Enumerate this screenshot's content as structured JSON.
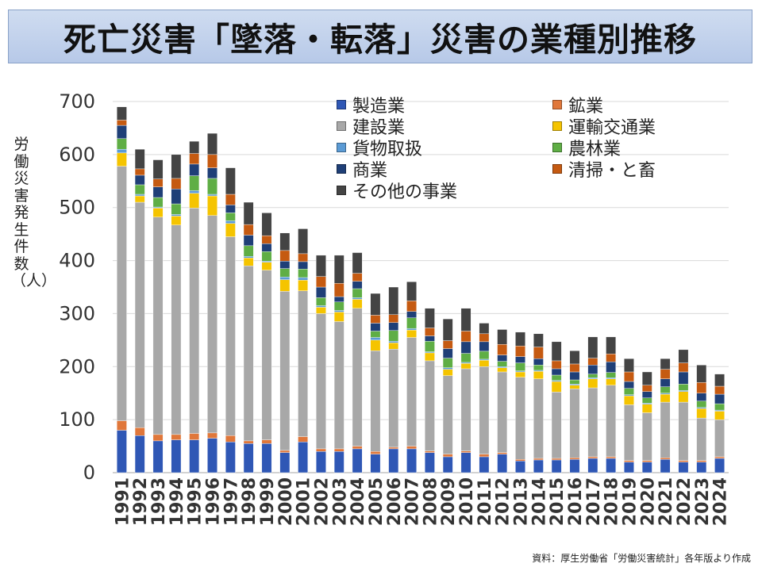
{
  "title": "死亡災害「墜落・転落」災害の業種別推移",
  "source_note": "資料：厚生労働省「労働災害統計」各年版より作成",
  "chart_data": {
    "type": "bar",
    "stacked": true,
    "title": "死亡災害「墜落・転落」災害の業種別推移",
    "xlabel": "",
    "ylabel": "労働災害発生件数（人）",
    "ylim": [
      0,
      700
    ],
    "yticks": [
      0,
      100,
      200,
      300,
      400,
      500,
      600,
      700
    ],
    "grid": true,
    "legend_position": "top-right",
    "categories": [
      "1991",
      "1992",
      "1993",
      "1994",
      "1995",
      "1996",
      "1997",
      "1998",
      "1999",
      "2000",
      "2001",
      "2002",
      "2003",
      "2004",
      "2005",
      "2006",
      "2007",
      "2008",
      "2009",
      "2010",
      "2011",
      "2012",
      "2013",
      "2014",
      "2015",
      "2016",
      "2017",
      "2018",
      "2019",
      "2020",
      "2021",
      "2022",
      "2023",
      "2024"
    ],
    "totals": [
      690,
      610,
      590,
      600,
      625,
      640,
      575,
      510,
      490,
      452,
      460,
      410,
      410,
      415,
      338,
      350,
      360,
      310,
      290,
      310,
      282,
      270,
      265,
      262,
      247,
      230,
      256,
      256,
      215,
      190,
      215,
      232,
      203,
      186
    ],
    "series": [
      {
        "name": "製造業",
        "color": "#2f57b5",
        "values": [
          80,
          70,
          60,
          62,
          62,
          65,
          58,
          55,
          55,
          38,
          58,
          40,
          40,
          45,
          35,
          45,
          45,
          38,
          30,
          38,
          30,
          35,
          22,
          24,
          24,
          25,
          27,
          27,
          20,
          20,
          25,
          20,
          20,
          27
        ]
      },
      {
        "name": "鉱業",
        "color": "#e0773a",
        "values": [
          18,
          15,
          12,
          10,
          12,
          10,
          12,
          5,
          7,
          4,
          10,
          5,
          5,
          5,
          5,
          3,
          5,
          3,
          5,
          3,
          5,
          3,
          3,
          3,
          3,
          3,
          3,
          3,
          3,
          3,
          3,
          3,
          3,
          3
        ]
      },
      {
        "name": "建設業",
        "color": "#a8a8a8",
        "values": [
          480,
          425,
          410,
          395,
          425,
          410,
          375,
          330,
          320,
          300,
          275,
          255,
          240,
          260,
          190,
          185,
          205,
          170,
          148,
          155,
          165,
          152,
          155,
          150,
          125,
          130,
          130,
          135,
          105,
          90,
          105,
          110,
          80,
          70
        ]
      },
      {
        "name": "運輸交通業",
        "color": "#f5c400",
        "values": [
          25,
          12,
          17,
          17,
          28,
          37,
          25,
          15,
          15,
          22,
          20,
          12,
          18,
          17,
          20,
          12,
          14,
          15,
          12,
          10,
          12,
          8,
          10,
          14,
          20,
          7,
          17,
          12,
          17,
          16,
          15,
          20,
          18,
          16
        ]
      },
      {
        "name": "貨物取扱",
        "color": "#5b9bd5",
        "values": [
          7,
          3,
          2,
          3,
          5,
          3,
          5,
          3,
          2,
          5,
          5,
          3,
          3,
          3,
          5,
          3,
          3,
          2,
          3,
          2,
          2,
          2,
          2,
          2,
          2,
          2,
          2,
          2,
          2,
          2,
          2,
          2,
          2,
          2
        ]
      },
      {
        "name": "農林業",
        "color": "#5fae45",
        "values": [
          20,
          18,
          18,
          20,
          28,
          30,
          15,
          20,
          18,
          16,
          16,
          15,
          16,
          17,
          12,
          20,
          20,
          20,
          18,
          17,
          15,
          10,
          15,
          10,
          10,
          8,
          7,
          10,
          12,
          10,
          12,
          12,
          12,
          12
        ]
      },
      {
        "name": "商業",
        "color": "#1f3f77",
        "values": [
          25,
          18,
          20,
          28,
          22,
          20,
          15,
          20,
          15,
          14,
          14,
          20,
          10,
          14,
          15,
          15,
          12,
          10,
          18,
          22,
          18,
          12,
          12,
          12,
          12,
          15,
          17,
          20,
          13,
          12,
          15,
          23,
          15,
          18
        ]
      },
      {
        "name": "清掃・と畜",
        "color": "#c55a11",
        "values": [
          10,
          12,
          15,
          20,
          20,
          25,
          20,
          20,
          15,
          20,
          15,
          20,
          25,
          15,
          15,
          15,
          20,
          15,
          15,
          20,
          15,
          20,
          20,
          22,
          15,
          15,
          13,
          15,
          18,
          12,
          18,
          17,
          20,
          15
        ]
      },
      {
        "name": "その他の事業",
        "color": "#444444",
        "values": [
          25,
          37,
          36,
          45,
          23,
          40,
          50,
          42,
          43,
          33,
          47,
          40,
          53,
          39,
          41,
          52,
          36,
          37,
          41,
          43,
          20,
          28,
          26,
          25,
          36,
          25,
          40,
          32,
          25,
          25,
          20,
          25,
          33,
          23
        ]
      }
    ]
  }
}
